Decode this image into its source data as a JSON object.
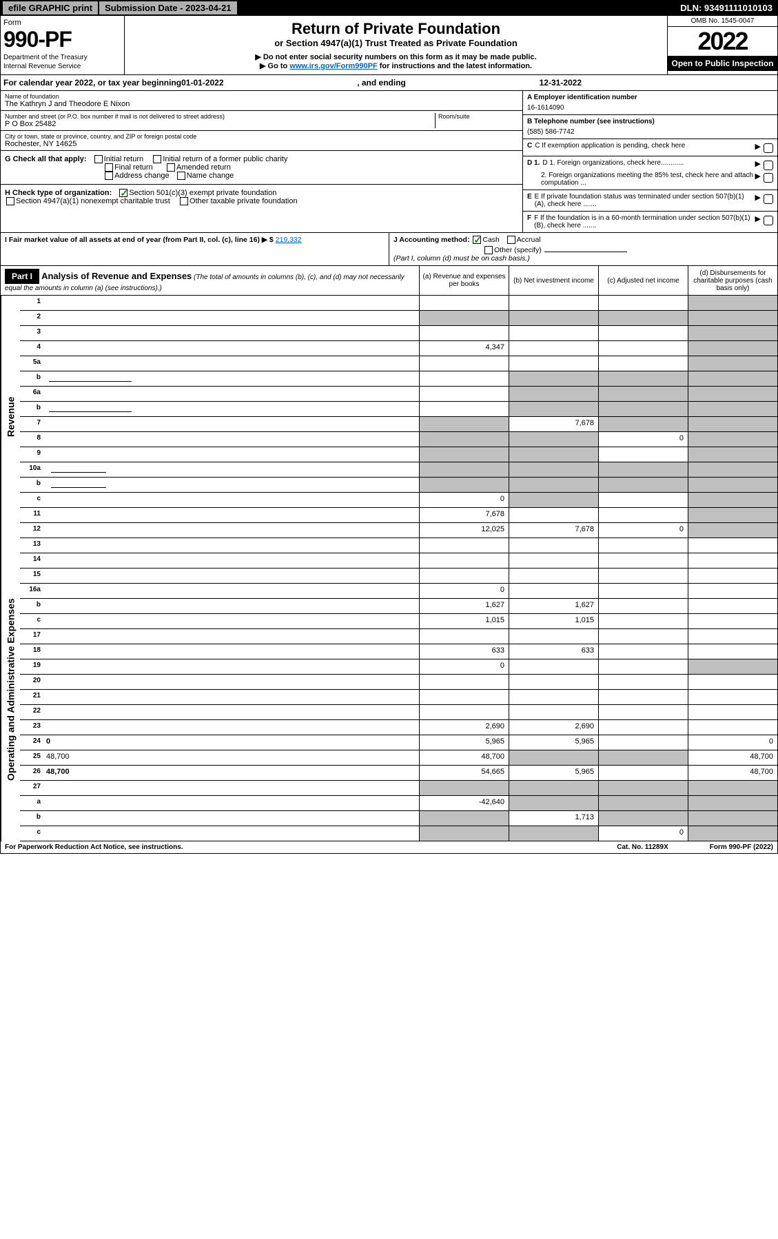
{
  "topbar": {
    "efile": "efile GRAPHIC print",
    "submission": "Submission Date - 2023-04-21",
    "dln": "DLN: 93491111010103"
  },
  "header": {
    "formword": "Form",
    "formnum": "990-PF",
    "dept1": "Department of the Treasury",
    "dept2": "Internal Revenue Service",
    "title": "Return of Private Foundation",
    "sub1": "or Section 4947(a)(1) Trust Treated as Private Foundation",
    "ssn": "▶ Do not enter social security numbers on this form as it may be made public.",
    "goto_pre": "▶ Go to ",
    "goto_link": "www.irs.gov/Form990PF",
    "goto_post": " for instructions and the latest information.",
    "omb": "OMB No. 1545-0047",
    "year": "2022",
    "open": "Open to Public Inspection"
  },
  "calrow": {
    "pre": "For calendar year 2022, or tax year beginning ",
    "begin": "01-01-2022",
    "mid": ", and ending ",
    "end": "12-31-2022"
  },
  "info": {
    "name_lbl": "Name of foundation",
    "name_val": "The Kathryn J and Theodore E Nixon",
    "addr_lbl": "Number and street (or P.O. box number if mail is not delivered to street address)",
    "addr_val": "P O Box 25482",
    "room_lbl": "Room/suite",
    "city_lbl": "City or town, state or province, country, and ZIP or foreign postal code",
    "city_val": "Rochester, NY  14625",
    "a_lbl": "A Employer identification number",
    "a_val": "16-1614090",
    "b_lbl": "B Telephone number (see instructions)",
    "b_val": "(585) 586-7742",
    "c_lbl": "C If exemption application is pending, check here",
    "d1": "D 1. Foreign organizations, check here............",
    "d2": "2. Foreign organizations meeting the 85% test, check here and attach computation ...",
    "e_lbl": "E  If private foundation status was terminated under section 507(b)(1)(A), check here .......",
    "f_lbl": "F  If the foundation is in a 60-month termination under section 507(b)(1)(B), check here ......."
  },
  "g": {
    "label": "G Check all that apply:",
    "o1": "Initial return",
    "o2": "Initial return of a former public charity",
    "o3": "Final return",
    "o4": "Amended return",
    "o5": "Address change",
    "o6": "Name change"
  },
  "h": {
    "label": "H Check type of organization:",
    "o1": "Section 501(c)(3) exempt private foundation",
    "o2": "Section 4947(a)(1) nonexempt charitable trust",
    "o3": "Other taxable private foundation"
  },
  "i": {
    "label": "I Fair market value of all assets at end of year (from Part II, col. (c), line 16) ▶ $ ",
    "val": "219,332"
  },
  "j": {
    "label": "J Accounting method:",
    "o1": "Cash",
    "o2": "Accrual",
    "o3": "Other (specify)",
    "note": "(Part I, column (d) must be on cash basis.)"
  },
  "part1": {
    "tag": "Part I",
    "title": "Analysis of Revenue and Expenses",
    "note": " (The total of amounts in columns (b), (c), and (d) may not necessarily equal the amounts in column (a) (see instructions).)",
    "ca": "(a)    Revenue and expenses per books",
    "cb": "(b)    Net investment income",
    "cc": "(c)    Adjusted net income",
    "cd": "(d)    Disbursements for charitable purposes (cash basis only)"
  },
  "sidetabs": {
    "rev": "Revenue",
    "ops": "Operating and Administrative Expenses"
  },
  "rows": [
    {
      "n": "1",
      "d": "",
      "a": "",
      "b": "",
      "c": "",
      "shade_d": true
    },
    {
      "n": "2",
      "d": "",
      "a": "",
      "b": "",
      "c": "",
      "shade_all": true,
      "bold_not": true
    },
    {
      "n": "3",
      "d": "",
      "a": "",
      "b": "",
      "c": "",
      "shade_d": true
    },
    {
      "n": "4",
      "d": "",
      "a": "4,347",
      "b": "",
      "c": "",
      "shade_d": true
    },
    {
      "n": "5a",
      "d": "",
      "a": "",
      "b": "",
      "c": "",
      "shade_d": true
    },
    {
      "n": "b",
      "d": "",
      "a": "",
      "b": "",
      "c": "",
      "shade_bcd": true,
      "has_blank": true
    },
    {
      "n": "6a",
      "d": "",
      "a": "",
      "b": "",
      "c": "",
      "shade_bcd": true
    },
    {
      "n": "b",
      "d": "",
      "a": "",
      "b": "",
      "c": "",
      "shade_bcd": true,
      "has_blank": true
    },
    {
      "n": "7",
      "d": "",
      "a": "",
      "b": "7,678",
      "c": "",
      "shade_a": true,
      "shade_cd": true
    },
    {
      "n": "8",
      "d": "",
      "a": "",
      "b": "",
      "c": "0",
      "shade_ab": true,
      "shade_d": true
    },
    {
      "n": "9",
      "d": "",
      "a": "",
      "b": "",
      "c": "",
      "shade_ab": true,
      "shade_d": true
    },
    {
      "n": "10a",
      "d": "",
      "a": "",
      "b": "",
      "c": "",
      "shade_all": true,
      "has_mid_blank": true
    },
    {
      "n": "b",
      "d": "",
      "a": "",
      "b": "",
      "c": "",
      "shade_all": true,
      "has_mid_blank": true
    },
    {
      "n": "c",
      "d": "",
      "a": "0",
      "b": "",
      "c": "",
      "shade_b": true,
      "shade_d": true
    },
    {
      "n": "11",
      "d": "",
      "a": "7,678",
      "b": "",
      "c": "",
      "shade_d": true
    },
    {
      "n": "12",
      "d": "",
      "a": "12,025",
      "b": "7,678",
      "c": "0",
      "bold": true,
      "shade_d": true
    }
  ],
  "ops_rows": [
    {
      "n": "13",
      "d": "",
      "a": "",
      "b": "",
      "c": ""
    },
    {
      "n": "14",
      "d": "",
      "a": "",
      "b": "",
      "c": ""
    },
    {
      "n": "15",
      "d": "",
      "a": "",
      "b": "",
      "c": ""
    },
    {
      "n": "16a",
      "d": "",
      "a": "0",
      "b": "",
      "c": ""
    },
    {
      "n": "b",
      "d": "",
      "a": "1,627",
      "b": "1,627",
      "c": ""
    },
    {
      "n": "c",
      "d": "",
      "a": "1,015",
      "b": "1,015",
      "c": ""
    },
    {
      "n": "17",
      "d": "",
      "a": "",
      "b": "",
      "c": ""
    },
    {
      "n": "18",
      "d": "",
      "a": "633",
      "b": "633",
      "c": ""
    },
    {
      "n": "19",
      "d": "",
      "a": "0",
      "b": "",
      "c": "",
      "shade_d": true
    },
    {
      "n": "20",
      "d": "",
      "a": "",
      "b": "",
      "c": ""
    },
    {
      "n": "21",
      "d": "",
      "a": "",
      "b": "",
      "c": ""
    },
    {
      "n": "22",
      "d": "",
      "a": "",
      "b": "",
      "c": ""
    },
    {
      "n": "23",
      "d": "",
      "a": "2,690",
      "b": "2,690",
      "c": ""
    },
    {
      "n": "24",
      "d": "0",
      "a": "5,965",
      "b": "5,965",
      "c": "",
      "bold": true
    },
    {
      "n": "25",
      "d": "48,700",
      "a": "48,700",
      "b": "",
      "c": "",
      "shade_bc": true
    },
    {
      "n": "26",
      "d": "48,700",
      "a": "54,665",
      "b": "5,965",
      "c": "",
      "bold": true
    },
    {
      "n": "27",
      "d": "",
      "a": "",
      "b": "",
      "c": "",
      "shade_all": true
    },
    {
      "n": "a",
      "d": "",
      "a": "-42,640",
      "b": "",
      "c": "",
      "bold": true,
      "shade_bcd": true
    },
    {
      "n": "b",
      "d": "",
      "a": "",
      "b": "1,713",
      "c": "",
      "bold": true,
      "shade_a": true,
      "shade_cd": true
    },
    {
      "n": "c",
      "d": "",
      "a": "",
      "b": "",
      "c": "0",
      "bold": true,
      "shade_ab": true,
      "shade_d": true
    }
  ],
  "footer": {
    "left": "For Paperwork Reduction Act Notice, see instructions.",
    "mid": "Cat. No. 11289X",
    "right": "Form 990-PF (2022)"
  }
}
